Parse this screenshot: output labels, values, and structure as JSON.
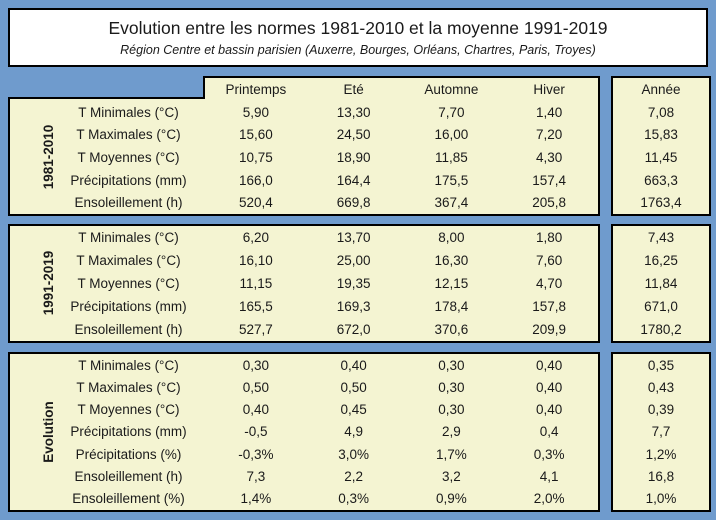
{
  "title": "Evolution entre les normes 1981-2010 et la moyenne 1991-2019",
  "subtitle": "Région Centre et bassin parisien (Auxerre, Bourges, Orléans, Chartres, Paris, Troyes)",
  "colors": {
    "background": "#6F9BCD",
    "cell_background": "#F4F4D2",
    "border": "#000000",
    "title_background": "#FFFFFF",
    "text": "#1A1A1A"
  },
  "chart_data": {
    "type": "table",
    "column_headers": [
      "Printemps",
      "Eté",
      "Automne",
      "Hiver"
    ],
    "year_header": "Année",
    "sections": [
      {
        "label": "1981-2010",
        "rows": [
          {
            "label": "T Minimales (°C)",
            "values": [
              "5,90",
              "13,30",
              "7,70",
              "1,40"
            ],
            "year": "7,08"
          },
          {
            "label": "T Maximales (°C)",
            "values": [
              "15,60",
              "24,50",
              "16,00",
              "7,20"
            ],
            "year": "15,83"
          },
          {
            "label": "T Moyennes (°C)",
            "values": [
              "10,75",
              "18,90",
              "11,85",
              "4,30"
            ],
            "year": "11,45"
          },
          {
            "label": "Précipitations (mm)",
            "values": [
              "166,0",
              "164,4",
              "175,5",
              "157,4"
            ],
            "year": "663,3"
          },
          {
            "label": "Ensoleillement (h)",
            "values": [
              "520,4",
              "669,8",
              "367,4",
              "205,8"
            ],
            "year": "1763,4"
          }
        ]
      },
      {
        "label": "1991-2019",
        "rows": [
          {
            "label": "T Minimales (°C)",
            "values": [
              "6,20",
              "13,70",
              "8,00",
              "1,80"
            ],
            "year": "7,43"
          },
          {
            "label": "T Maximales (°C)",
            "values": [
              "16,10",
              "25,00",
              "16,30",
              "7,60"
            ],
            "year": "16,25"
          },
          {
            "label": "T Moyennes (°C)",
            "values": [
              "11,15",
              "19,35",
              "12,15",
              "4,70"
            ],
            "year": "11,84"
          },
          {
            "label": "Précipitations (mm)",
            "values": [
              "165,5",
              "169,3",
              "178,4",
              "157,8"
            ],
            "year": "671,0"
          },
          {
            "label": "Ensoleillement (h)",
            "values": [
              "527,7",
              "672,0",
              "370,6",
              "209,9"
            ],
            "year": "1780,2"
          }
        ]
      },
      {
        "label": "Evolution",
        "rows": [
          {
            "label": "T Minimales (°C)",
            "values": [
              "0,30",
              "0,40",
              "0,30",
              "0,40"
            ],
            "year": "0,35"
          },
          {
            "label": "T Maximales (°C)",
            "values": [
              "0,50",
              "0,50",
              "0,30",
              "0,40"
            ],
            "year": "0,43"
          },
          {
            "label": "T Moyennes (°C)",
            "values": [
              "0,40",
              "0,45",
              "0,30",
              "0,40"
            ],
            "year": "0,39"
          },
          {
            "label": "Précipitations (mm)",
            "values": [
              "-0,5",
              "4,9",
              "2,9",
              "0,4"
            ],
            "year": "7,7"
          },
          {
            "label": "Précipitations (%)",
            "values": [
              "-0,3%",
              "3,0%",
              "1,7%",
              "0,3%"
            ],
            "year": "1,2%"
          },
          {
            "label": "Ensoleillement (h)",
            "values": [
              "7,3",
              "2,2",
              "3,2",
              "4,1"
            ],
            "year": "16,8"
          },
          {
            "label": "Ensoleillement (%)",
            "values": [
              "1,4%",
              "0,3%",
              "0,9%",
              "2,0%"
            ],
            "year": "1,0%"
          }
        ]
      }
    ]
  }
}
